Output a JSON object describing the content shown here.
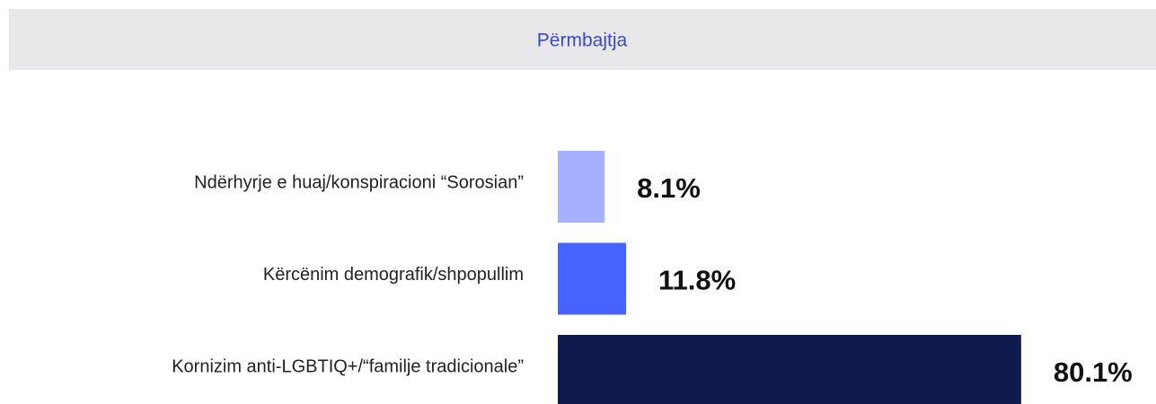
{
  "chart_data": {
    "type": "barh",
    "title": "Përmbajtja",
    "categories": [
      "Ndërhyrje e huaj/konspiracioni “Sorosian”",
      "Kërcënim demografik/shpopullim",
      "Kornizim anti-LGBTIQ+/“familje tradicionale”"
    ],
    "values": [
      8.1,
      11.8,
      80.1
    ],
    "value_labels": [
      "8.1%",
      "11.8%",
      "80.1%"
    ],
    "colors": [
      "#a5b1ff",
      "#4763ff",
      "#0f1a4f"
    ],
    "xlim": [
      0,
      100
    ]
  }
}
